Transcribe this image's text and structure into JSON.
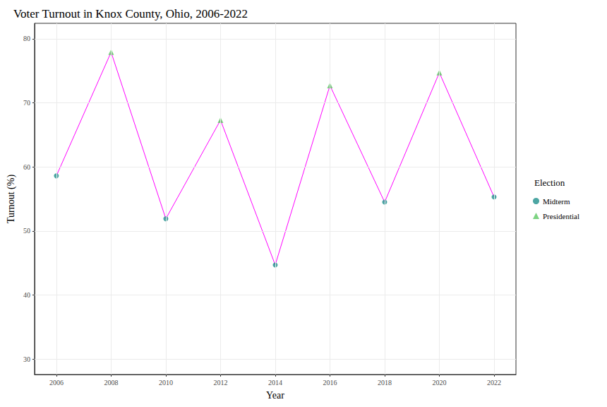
{
  "chart_data": {
    "type": "line",
    "title": "Voter Turnout in Knox County, Ohio, 2006-2022",
    "x_label": "Year",
    "y_label": "Turnout (%)",
    "x": [
      2006,
      2008,
      2010,
      2012,
      2014,
      2016,
      2018,
      2020,
      2022
    ],
    "color": "#ff00ff",
    "series": [
      {
        "name": "Midterm",
        "type": "scatter",
        "color": "#21908c",
        "marker": "circle",
        "values": [
          58.6,
          null,
          51.9,
          null,
          44.7,
          null,
          54.5,
          null,
          55.3
        ]
      },
      {
        "name": "Presidential",
        "type": "scatter",
        "color": "#5dc863",
        "marker": "triangle",
        "values": [
          null,
          77.9,
          null,
          67.3,
          null,
          72.7,
          null,
          74.7,
          null
        ]
      }
    ],
    "xlim": [
      2005.2,
      2022.8
    ],
    "xticks": [
      2006,
      2008,
      2010,
      2012,
      2014,
      2016,
      2018,
      2020,
      2022
    ],
    "ylim": [
      27.6,
      82.4
    ],
    "yticks": [
      30,
      40,
      50,
      60,
      70,
      80
    ],
    "grid": true,
    "legend": "right",
    "legend_title": "Election"
  }
}
